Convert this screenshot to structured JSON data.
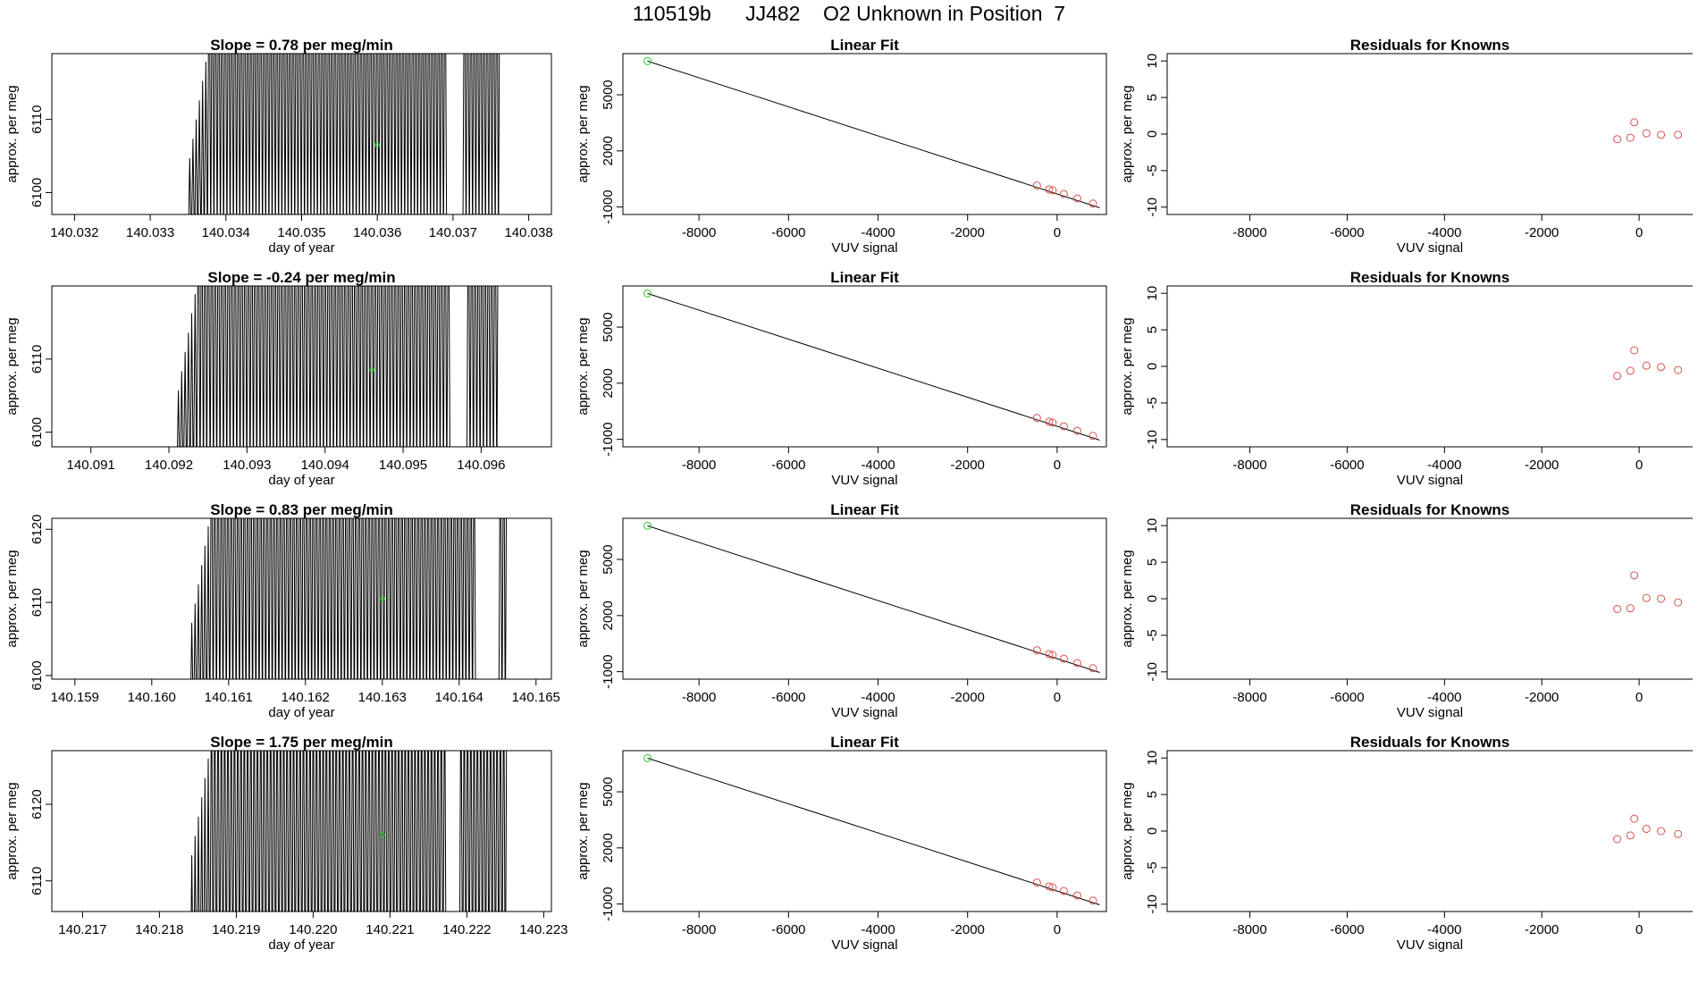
{
  "page_title": "110519b      JJ482    O2 Unknown in Position  7",
  "colors": {
    "frame": "#000000",
    "trace": "#000000",
    "unknown_point": "#22cc22",
    "known_point": "#d9534f",
    "fit_line": "#000000"
  },
  "chart_data": [
    {
      "type": "line",
      "panel": "slope",
      "row": 1,
      "title": "Slope =  0.78  per meg/min",
      "xlabel": "day of year",
      "ylabel": "approx. per meg",
      "xlim": [
        140.0317,
        140.0383
      ],
      "ylim": [
        6097,
        6119
      ],
      "xticks": [
        "140.032",
        "140.033",
        "140.034",
        "140.035",
        "140.036",
        "140.037",
        "140.038"
      ],
      "xtick_values": [
        140.032,
        140.033,
        140.034,
        140.035,
        140.036,
        140.037,
        140.038
      ],
      "yticks": [
        "6100",
        "6110"
      ],
      "ytick_values": [
        6100,
        6110
      ],
      "trace_x_range": [
        140.0335,
        140.0376
      ],
      "trace_y": [
        6092,
        6140
      ],
      "gaps": [
        [
          140.0369,
          140.0371
        ]
      ],
      "unknown_point": {
        "x": 140.036,
        "y": 6106.5
      }
    },
    {
      "type": "line",
      "panel": "slope",
      "row": 2,
      "title": "Slope =  -0.24  per meg/min",
      "xlabel": "day of year",
      "ylabel": "approx. per meg",
      "xlim": [
        140.0905,
        140.0969
      ],
      "ylim": [
        6098,
        6120
      ],
      "xticks": [
        "140.091",
        "140.092",
        "140.093",
        "140.094",
        "140.095",
        "140.096"
      ],
      "xtick_values": [
        140.091,
        140.092,
        140.093,
        140.094,
        140.095,
        140.096
      ],
      "yticks": [
        "6100",
        "6110"
      ],
      "ytick_values": [
        6100,
        6110
      ],
      "trace_x_range": [
        140.0921,
        140.0962
      ],
      "trace_y": [
        6092,
        6140
      ],
      "gaps": [
        [
          140.0956,
          140.0958
        ]
      ],
      "unknown_point": {
        "x": 140.0946,
        "y": 6108.5
      }
    },
    {
      "type": "line",
      "panel": "slope",
      "row": 3,
      "title": "Slope =  0.83  per meg/min",
      "xlabel": "day of year",
      "ylabel": "approx. per meg",
      "xlim": [
        140.1587,
        140.1652
      ],
      "ylim": [
        6099.5,
        6121.5
      ],
      "xticks": [
        "140.159",
        "140.160",
        "140.161",
        "140.162",
        "140.163",
        "140.164",
        "140.165"
      ],
      "xtick_values": [
        140.159,
        140.16,
        140.161,
        140.162,
        140.163,
        140.164,
        140.165
      ],
      "yticks": [
        "6100",
        "6110",
        "6120"
      ],
      "ytick_values": [
        6100,
        6110,
        6120
      ],
      "trace_x_range": [
        140.1605,
        140.1646
      ],
      "trace_y": [
        6092,
        6140
      ],
      "gaps": [
        [
          140.1642,
          140.1645
        ]
      ],
      "unknown_point": {
        "x": 140.163,
        "y": 6110.5
      }
    },
    {
      "type": "line",
      "panel": "slope",
      "row": 4,
      "title": "Slope =  1.75  per meg/min",
      "xlabel": "day of year",
      "ylabel": "approx. per meg",
      "xlim": [
        140.2166,
        140.2231
      ],
      "ylim": [
        6106,
        6127
      ],
      "xticks": [
        "140.217",
        "140.218",
        "140.219",
        "140.220",
        "140.221",
        "140.222",
        "140.223"
      ],
      "xtick_values": [
        140.217,
        140.218,
        140.219,
        140.22,
        140.221,
        140.222,
        140.223
      ],
      "yticks": [
        "6110",
        "6120"
      ],
      "ytick_values": [
        6110,
        6120
      ],
      "trace_x_range": [
        140.2184,
        140.2225
      ],
      "trace_y": [
        6092,
        6140
      ],
      "gaps": [
        [
          140.2217,
          140.2219
        ]
      ],
      "unknown_point": {
        "x": 140.2209,
        "y": 6116
      }
    },
    {
      "type": "scatter",
      "panel": "fit",
      "row": 1,
      "title": "Linear Fit",
      "xlabel": "VUV signal",
      "ylabel": "approx. per meg",
      "xlim": [
        -9700,
        1100
      ],
      "ylim": [
        -1400,
        7200
      ],
      "xticks": [
        "-8000",
        "-6000",
        "-4000",
        "-2000",
        "0"
      ],
      "xtick_values": [
        -8000,
        -6000,
        -4000,
        -2000,
        0
      ],
      "yticks": [
        "-1000",
        "2000",
        "5000"
      ],
      "ytick_values": [
        -1000,
        2000,
        5000
      ],
      "fit_line": {
        "x": [
          -9150,
          950
        ],
        "y": [
          6800,
          -1040
        ]
      },
      "unknown_point": {
        "x": -9150,
        "y": 6800
      },
      "known_points": {
        "x": [
          -450,
          -180,
          -100,
          150,
          450,
          800
        ],
        "y": [
          145,
          -60,
          -110,
          -305,
          -545,
          -815
        ]
      }
    },
    {
      "type": "scatter",
      "panel": "fit",
      "row": 2,
      "title": "Linear Fit",
      "xlabel": "VUV signal",
      "ylabel": "approx. per meg",
      "xlim": [
        -9700,
        1100
      ],
      "ylim": [
        -1400,
        7200
      ],
      "xticks": [
        "-8000",
        "-6000",
        "-4000",
        "-2000",
        "0"
      ],
      "xtick_values": [
        -8000,
        -6000,
        -4000,
        -2000,
        0
      ],
      "yticks": [
        "-1000",
        "2000",
        "5000"
      ],
      "ytick_values": [
        -1000,
        2000,
        5000
      ],
      "fit_line": {
        "x": [
          -9150,
          950
        ],
        "y": [
          6800,
          -1040
        ]
      },
      "unknown_point": {
        "x": -9150,
        "y": 6800
      },
      "known_points": {
        "x": [
          -450,
          -180,
          -100,
          150,
          450,
          800
        ],
        "y": [
          145,
          -60,
          -110,
          -305,
          -545,
          -815
        ]
      }
    },
    {
      "type": "scatter",
      "panel": "fit",
      "row": 3,
      "title": "Linear Fit",
      "xlabel": "VUV signal",
      "ylabel": "approx. per meg",
      "xlim": [
        -9700,
        1100
      ],
      "ylim": [
        -1400,
        7200
      ],
      "xticks": [
        "-8000",
        "-6000",
        "-4000",
        "-2000",
        "0"
      ],
      "xtick_values": [
        -8000,
        -6000,
        -4000,
        -2000,
        0
      ],
      "yticks": [
        "-1000",
        "2000",
        "5000"
      ],
      "ytick_values": [
        -1000,
        2000,
        5000
      ],
      "fit_line": {
        "x": [
          -9150,
          950
        ],
        "y": [
          6800,
          -1040
        ]
      },
      "unknown_point": {
        "x": -9150,
        "y": 6800
      },
      "known_points": {
        "x": [
          -450,
          -180,
          -100,
          150,
          450,
          800
        ],
        "y": [
          145,
          -60,
          -110,
          -305,
          -545,
          -815
        ]
      }
    },
    {
      "type": "scatter",
      "panel": "fit",
      "row": 4,
      "title": "Linear Fit",
      "xlabel": "VUV signal",
      "ylabel": "approx. per meg",
      "xlim": [
        -9700,
        1100
      ],
      "ylim": [
        -1400,
        7200
      ],
      "xticks": [
        "-8000",
        "-6000",
        "-4000",
        "-2000",
        "0"
      ],
      "xtick_values": [
        -8000,
        -6000,
        -4000,
        -2000,
        0
      ],
      "yticks": [
        "-1000",
        "2000",
        "5000"
      ],
      "ytick_values": [
        -1000,
        2000,
        5000
      ],
      "fit_line": {
        "x": [
          -9150,
          950
        ],
        "y": [
          6800,
          -1040
        ]
      },
      "unknown_point": {
        "x": -9150,
        "y": 6800
      },
      "known_points": {
        "x": [
          -450,
          -180,
          -100,
          150,
          450,
          800
        ],
        "y": [
          145,
          -60,
          -110,
          -305,
          -545,
          -815
        ]
      }
    },
    {
      "type": "scatter",
      "panel": "residuals",
      "row": 1,
      "title": "Residuals for Knowns",
      "xlabel": "VUV signal",
      "ylabel": "approx. per meg",
      "xlim": [
        -9700,
        1100
      ],
      "ylim": [
        -11,
        11
      ],
      "xticks": [
        "-8000",
        "-6000",
        "-4000",
        "-2000",
        "0"
      ],
      "xtick_values": [
        -8000,
        -6000,
        -4000,
        -2000,
        0
      ],
      "yticks": [
        "-10",
        "-5",
        "0",
        "5",
        "10"
      ],
      "ytick_values": [
        -10,
        -5,
        0,
        5,
        10
      ],
      "points": {
        "x": [
          -450,
          -180,
          -100,
          150,
          450,
          800
        ],
        "y": [
          -0.7,
          -0.5,
          1.6,
          0.1,
          -0.1,
          -0.1
        ]
      }
    },
    {
      "type": "scatter",
      "panel": "residuals",
      "row": 2,
      "title": "Residuals for Knowns",
      "xlabel": "VUV signal",
      "ylabel": "approx. per meg",
      "xlim": [
        -9700,
        1100
      ],
      "ylim": [
        -11,
        11
      ],
      "xticks": [
        "-8000",
        "-6000",
        "-4000",
        "-2000",
        "0"
      ],
      "xtick_values": [
        -8000,
        -6000,
        -4000,
        -2000,
        0
      ],
      "yticks": [
        "-10",
        "-5",
        "0",
        "5",
        "10"
      ],
      "ytick_values": [
        -10,
        -5,
        0,
        5,
        10
      ],
      "points": {
        "x": [
          -450,
          -180,
          -100,
          150,
          450,
          800
        ],
        "y": [
          -1.3,
          -0.6,
          2.2,
          0.1,
          -0.1,
          -0.5
        ]
      }
    },
    {
      "type": "scatter",
      "panel": "residuals",
      "row": 3,
      "title": "Residuals for Knowns",
      "xlabel": "VUV signal",
      "ylabel": "approx. per meg",
      "xlim": [
        -9700,
        1100
      ],
      "ylim": [
        -11,
        11
      ],
      "xticks": [
        "-8000",
        "-6000",
        "-4000",
        "-2000",
        "0"
      ],
      "xtick_values": [
        -8000,
        -6000,
        -4000,
        -2000,
        0
      ],
      "yticks": [
        "-10",
        "-5",
        "0",
        "5",
        "10"
      ],
      "ytick_values": [
        -10,
        -5,
        0,
        5,
        10
      ],
      "points": {
        "x": [
          -450,
          -180,
          -100,
          150,
          450,
          800
        ],
        "y": [
          -1.4,
          -1.3,
          3.2,
          0.1,
          0.0,
          -0.5
        ]
      }
    },
    {
      "type": "scatter",
      "panel": "residuals",
      "row": 4,
      "title": "Residuals for Knowns",
      "xlabel": "VUV signal",
      "ylabel": "approx. per meg",
      "xlim": [
        -9700,
        1100
      ],
      "ylim": [
        -11,
        11
      ],
      "xticks": [
        "-8000",
        "-6000",
        "-4000",
        "-2000",
        "0"
      ],
      "xtick_values": [
        -8000,
        -6000,
        -4000,
        -2000,
        0
      ],
      "yticks": [
        "-10",
        "-5",
        "0",
        "5",
        "10"
      ],
      "ytick_values": [
        -10,
        -5,
        0,
        5,
        10
      ],
      "points": {
        "x": [
          -450,
          -180,
          -100,
          150,
          450,
          800
        ],
        "y": [
          -1.1,
          -0.6,
          1.7,
          0.3,
          0.0,
          -0.4
        ]
      }
    }
  ]
}
